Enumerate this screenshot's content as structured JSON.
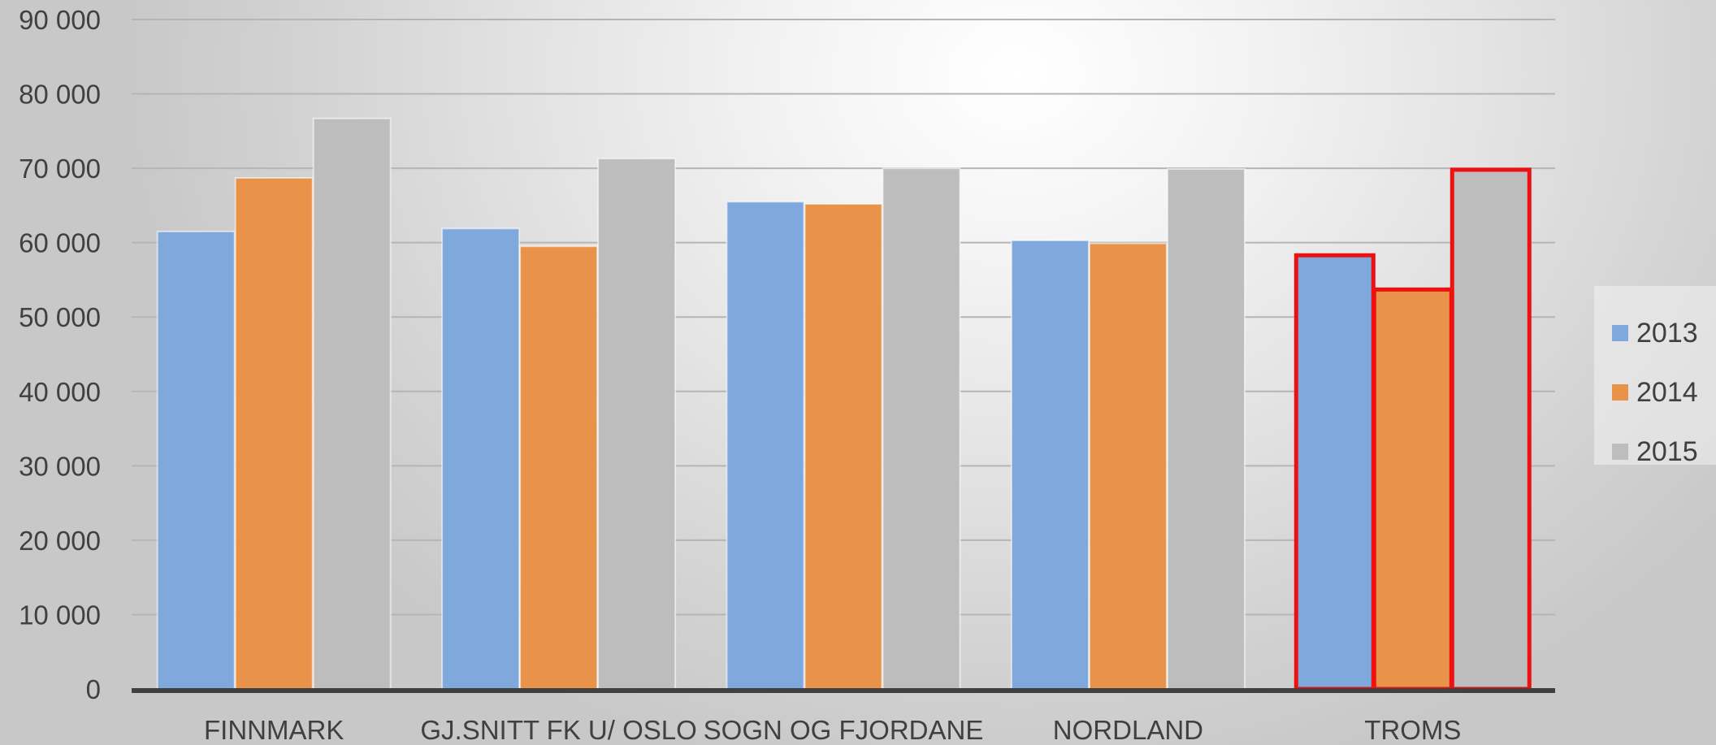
{
  "chart_data": {
    "type": "bar",
    "title": "",
    "xlabel": "",
    "ylabel": "",
    "categories": [
      "FINNMARK",
      "GJ.SNITT FK U/ OSLO",
      "SOGN OG FJORDANE",
      "NORDLAND",
      "TROMS"
    ],
    "series": [
      {
        "name": "2013",
        "color": "#7FA8DD",
        "values": [
          61500,
          61900,
          65500,
          60300,
          58300
        ]
      },
      {
        "name": "2014",
        "color": "#E8924A",
        "values": [
          68700,
          59500,
          65200,
          59900,
          53700
        ]
      },
      {
        "name": "2015",
        "color": "#BDBDBD",
        "values": [
          76700,
          71300,
          70000,
          69900,
          69800
        ]
      }
    ],
    "ylim": [
      0,
      90000
    ],
    "yticks": [
      0,
      10000,
      20000,
      30000,
      40000,
      50000,
      60000,
      70000,
      80000,
      90000
    ],
    "ytick_labels": [
      "0",
      "10 000",
      "20 000",
      "30 000",
      "40 000",
      "50 000",
      "60 000",
      "70 000",
      "80 000",
      "90 000"
    ],
    "grid": true,
    "legend_position": "right",
    "highlighted_category": "TROMS",
    "highlight_color": "#EE1111"
  }
}
